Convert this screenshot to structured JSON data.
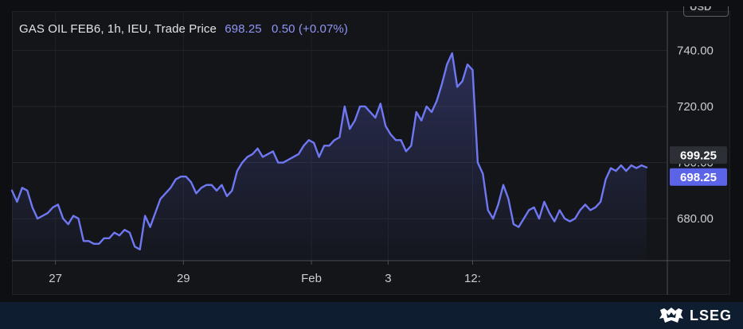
{
  "header": {
    "title": "GAS OIL FEB6, 1h, IEU, Trade Price",
    "last": "698.25",
    "change": "0.50 (+0.07%)",
    "unit": "USD"
  },
  "brand": {
    "name": "LSEG",
    "logo_icon": "lseg-crest-icon"
  },
  "colors": {
    "line": "#6f78f2",
    "last_tag": "#5b64e8",
    "prev_tag": "#2c2f35",
    "panel": "#131519",
    "footer": "#0f1d30"
  },
  "price_tags": {
    "previous": {
      "label": "699.25",
      "value": 699.25
    },
    "last": {
      "label": "698.25",
      "value": 698.25
    }
  },
  "chart_data": {
    "type": "area",
    "title": "GAS OIL FEB6, 1h, IEU, Trade Price",
    "ylabel": "USD",
    "ylim": [
      665,
      754
    ],
    "y_ticks": [
      {
        "value": 680,
        "label": "680.00"
      },
      {
        "value": 700,
        "label": "700.00"
      },
      {
        "value": 720,
        "label": "720.00"
      },
      {
        "value": 740,
        "label": "740.00"
      }
    ],
    "x_ticks": [
      {
        "index": 8.5,
        "label": "27"
      },
      {
        "index": 33.5,
        "label": "29"
      },
      {
        "index": 58.5,
        "label": "Feb"
      },
      {
        "index": 73.5,
        "label": "3"
      },
      {
        "index": 90,
        "label": "12:"
      }
    ],
    "grid": true,
    "series": [
      {
        "values": [
          690,
          686,
          691,
          690,
          684,
          680,
          681,
          682,
          684,
          685,
          680,
          678,
          681,
          680,
          672,
          672,
          671,
          671,
          673,
          673,
          675,
          674,
          676,
          675,
          670,
          669,
          681,
          677,
          682,
          687,
          689,
          691,
          694,
          695,
          695,
          693,
          689,
          691,
          692,
          692,
          690,
          692,
          688,
          690,
          697,
          700,
          702,
          703,
          705,
          702,
          703,
          704,
          700,
          700,
          701,
          702,
          703,
          706,
          708,
          707,
          702,
          706,
          706,
          708,
          709,
          720,
          712,
          715,
          720,
          720,
          718,
          716,
          721,
          713,
          710,
          708,
          708,
          704,
          706,
          718,
          715,
          720,
          718,
          722,
          728,
          735,
          739,
          727,
          729,
          735,
          733,
          700,
          696,
          683,
          680,
          685,
          692,
          687,
          678,
          677,
          680,
          683,
          684,
          680,
          686,
          682,
          679,
          683,
          680,
          679,
          680,
          683,
          685,
          683,
          684,
          686,
          694,
          698,
          697,
          699,
          697,
          699,
          698,
          699,
          698.25
        ]
      }
    ]
  }
}
